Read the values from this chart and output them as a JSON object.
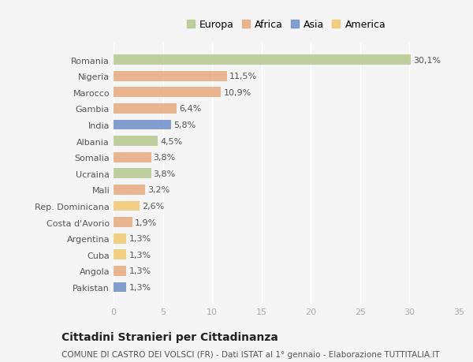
{
  "countries": [
    "Romania",
    "Nigeria",
    "Marocco",
    "Gambia",
    "India",
    "Albania",
    "Somalia",
    "Ucraina",
    "Mali",
    "Rep. Dominicana",
    "Costa d'Avorio",
    "Argentina",
    "Cuba",
    "Angola",
    "Pakistan"
  ],
  "values": [
    30.1,
    11.5,
    10.9,
    6.4,
    5.8,
    4.5,
    3.8,
    3.8,
    3.2,
    2.6,
    1.9,
    1.3,
    1.3,
    1.3,
    1.3
  ],
  "labels": [
    "30,1%",
    "11,5%",
    "10,9%",
    "6,4%",
    "5,8%",
    "4,5%",
    "3,8%",
    "3,8%",
    "3,2%",
    "2,6%",
    "1,9%",
    "1,3%",
    "1,3%",
    "1,3%",
    "1,3%"
  ],
  "continents": [
    "Europa",
    "Africa",
    "Africa",
    "Africa",
    "Asia",
    "Europa",
    "Africa",
    "Europa",
    "Africa",
    "America",
    "Africa",
    "America",
    "America",
    "Africa",
    "Asia"
  ],
  "continent_colors": {
    "Europa": "#b5c98e",
    "Africa": "#e8a97e",
    "Asia": "#6e8fc9",
    "America": "#f0c96e"
  },
  "legend_order": [
    "Europa",
    "Africa",
    "Asia",
    "America"
  ],
  "title": "Cittadini Stranieri per Cittadinanza",
  "subtitle": "COMUNE DI CASTRO DEI VOLSCI (FR) - Dati ISTAT al 1° gennaio - Elaborazione TUTTITALIA.IT",
  "xlim": [
    0,
    35
  ],
  "xticks": [
    0,
    5,
    10,
    15,
    20,
    25,
    30,
    35
  ],
  "bg_color": "#f5f5f5",
  "bar_height": 0.62,
  "label_fontsize": 8,
  "tick_fontsize": 8,
  "title_fontsize": 10,
  "subtitle_fontsize": 7.5,
  "legend_fontsize": 9
}
